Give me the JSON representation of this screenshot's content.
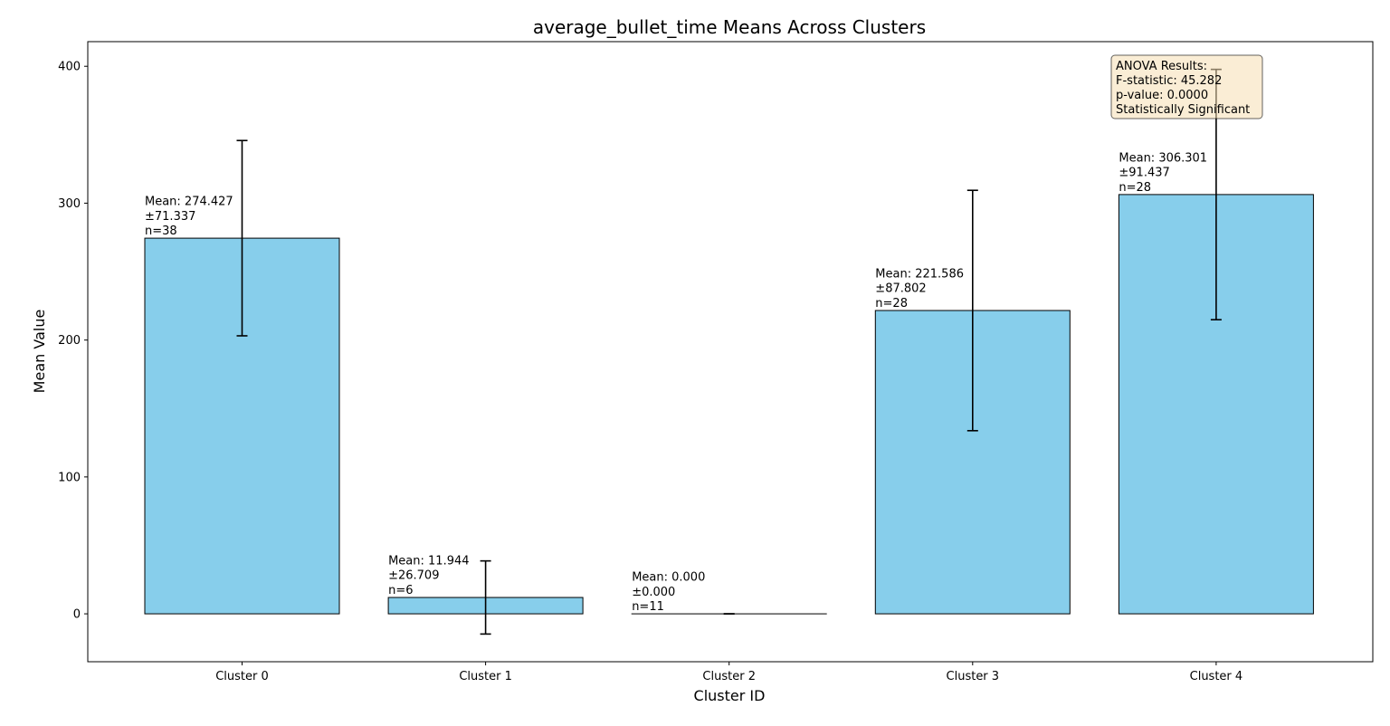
{
  "chart_data": {
    "type": "bar",
    "title": "average_bullet_time Means Across Clusters",
    "xlabel": "Cluster ID",
    "ylabel": "Mean Value",
    "categories": [
      "Cluster 0",
      "Cluster 1",
      "Cluster 2",
      "Cluster 3",
      "Cluster 4"
    ],
    "values": [
      274.427,
      11.944,
      0.0,
      221.586,
      306.301
    ],
    "errors": [
      71.337,
      26.709,
      0.0,
      87.802,
      91.437
    ],
    "counts": [
      38,
      6,
      11,
      28,
      28
    ],
    "bar_labels": [
      [
        "Mean: 274.427",
        "±71.337",
        "n=38"
      ],
      [
        "Mean: 11.944",
        "±26.709",
        "n=6"
      ],
      [
        "Mean: 0.000",
        "±0.000",
        "n=11"
      ],
      [
        "Mean: 221.586",
        "±87.802",
        "n=28"
      ],
      [
        "Mean: 306.301",
        "±91.437",
        "n=28"
      ]
    ],
    "ylim": [
      -35,
      418
    ],
    "yticks": [
      0,
      100,
      200,
      300,
      400
    ],
    "grid": false,
    "bar_color": "#87CEEB",
    "bar_edge_color": "#000000",
    "annotation_box": {
      "lines": [
        "ANOVA Results:",
        "F-statistic: 45.282",
        "p-value: 0.0000",
        "Statistically Significant"
      ],
      "placement": "top-right",
      "fill": "#F5DEB3"
    }
  }
}
